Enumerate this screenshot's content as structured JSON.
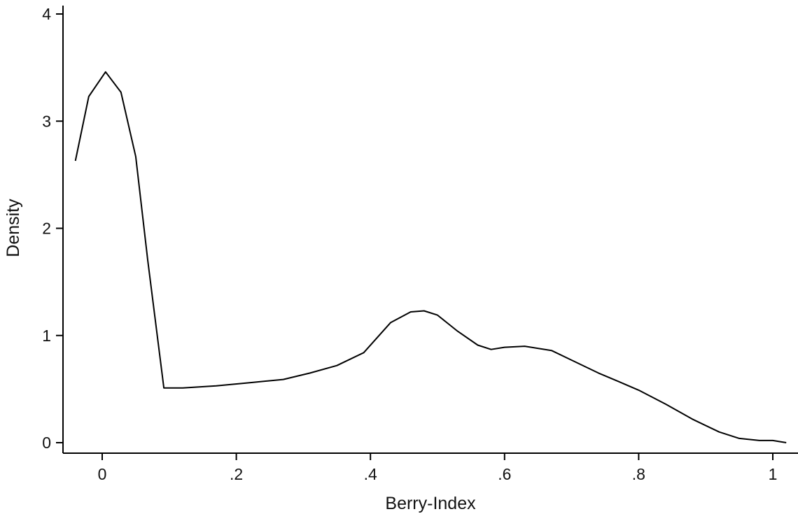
{
  "chart_data": {
    "type": "line",
    "title": "",
    "xlabel": "Berry-Index",
    "ylabel": "Density",
    "xlim": [
      -0.05,
      1.02
    ],
    "ylim": [
      0,
      4
    ],
    "grid": false,
    "x_ticks": [
      {
        "value": 0,
        "label": "0"
      },
      {
        "value": 0.2,
        "label": ".2"
      },
      {
        "value": 0.4,
        "label": ".4"
      },
      {
        "value": 0.6,
        "label": ".6"
      },
      {
        "value": 0.8,
        "label": ".8"
      },
      {
        "value": 1,
        "label": "1"
      }
    ],
    "y_ticks": [
      {
        "value": 0,
        "label": "0"
      },
      {
        "value": 1,
        "label": "1"
      },
      {
        "value": 2,
        "label": "2"
      },
      {
        "value": 3,
        "label": "3"
      },
      {
        "value": 4,
        "label": "4"
      }
    ],
    "series": [
      {
        "color": "#000000",
        "x": [
          -0.04,
          -0.02,
          0.005,
          0.028,
          0.05,
          0.068,
          0.092,
          0.12,
          0.17,
          0.22,
          0.27,
          0.31,
          0.35,
          0.39,
          0.43,
          0.46,
          0.48,
          0.5,
          0.53,
          0.56,
          0.58,
          0.6,
          0.63,
          0.67,
          0.7,
          0.74,
          0.77,
          0.8,
          0.84,
          0.88,
          0.92,
          0.95,
          0.98,
          1.0,
          1.02
        ],
        "y": [
          2.63,
          3.23,
          3.46,
          3.27,
          2.67,
          1.7,
          0.51,
          0.51,
          0.53,
          0.56,
          0.59,
          0.65,
          0.72,
          0.84,
          1.12,
          1.22,
          1.23,
          1.19,
          1.04,
          0.91,
          0.87,
          0.89,
          0.9,
          0.86,
          0.77,
          0.65,
          0.57,
          0.49,
          0.36,
          0.22,
          0.1,
          0.04,
          0.02,
          0.02,
          0.0
        ]
      }
    ]
  }
}
